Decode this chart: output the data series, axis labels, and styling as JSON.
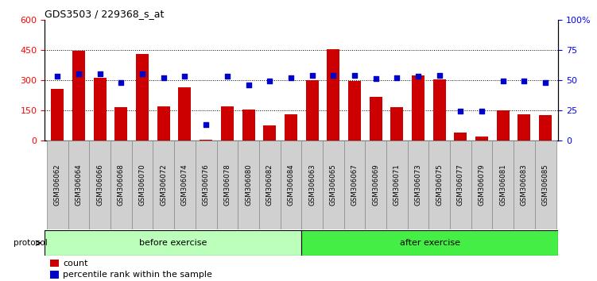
{
  "title": "GDS3503 / 229368_s_at",
  "categories": [
    "GSM306062",
    "GSM306064",
    "GSM306066",
    "GSM306068",
    "GSM306070",
    "GSM306072",
    "GSM306074",
    "GSM306076",
    "GSM306078",
    "GSM306080",
    "GSM306082",
    "GSM306084",
    "GSM306063",
    "GSM306065",
    "GSM306067",
    "GSM306069",
    "GSM306071",
    "GSM306073",
    "GSM306075",
    "GSM306077",
    "GSM306079",
    "GSM306081",
    "GSM306083",
    "GSM306085"
  ],
  "counts": [
    255,
    445,
    310,
    165,
    430,
    168,
    265,
    5,
    168,
    155,
    75,
    130,
    300,
    455,
    295,
    215,
    165,
    325,
    305,
    40,
    20,
    148,
    130,
    128
  ],
  "percentiles": [
    53,
    55,
    55,
    48,
    55,
    52,
    53,
    13,
    53,
    46,
    49,
    52,
    54,
    54,
    54,
    51,
    52,
    53,
    54,
    24,
    24,
    49,
    49,
    48
  ],
  "bar_color": "#cc0000",
  "dot_color": "#0000cc",
  "ylim_left": [
    0,
    600
  ],
  "ylim_right": [
    0,
    100
  ],
  "yticks_left": [
    0,
    150,
    300,
    450,
    600
  ],
  "yticks_right": [
    0,
    25,
    50,
    75,
    100
  ],
  "ytick_labels_left": [
    "0",
    "150",
    "300",
    "450",
    "600"
  ],
  "ytick_labels_right": [
    "0",
    "25",
    "50",
    "75",
    "100%"
  ],
  "grid_lines": [
    150,
    300,
    450
  ],
  "before_exercise_count": 12,
  "after_exercise_count": 12,
  "protocol_label": "protocol",
  "before_label": "before exercise",
  "after_label": "after exercise",
  "legend_count_label": "count",
  "legend_percentile_label": "percentile rank within the sample",
  "before_color": "#bbffbb",
  "after_color": "#44ee44",
  "xticklabel_bg": "#d0d0d0"
}
